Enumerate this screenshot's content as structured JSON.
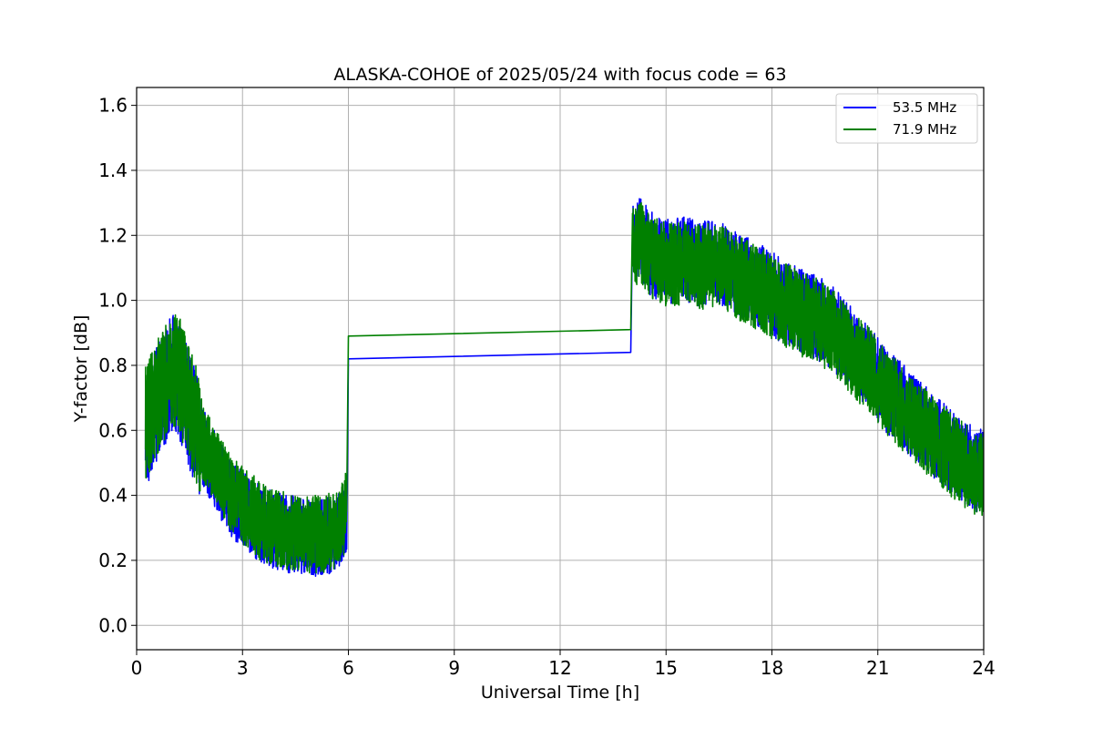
{
  "chart_data": {
    "type": "line",
    "title": "ALASKA-COHOE of 2025/05/24 with focus code = 63",
    "xlabel": "Universal Time [h]",
    "ylabel": "Y-factor [dB]",
    "xlim": [
      0,
      24
    ],
    "ylim": [
      -0.075,
      1.655
    ],
    "xticks": [
      0,
      3,
      6,
      9,
      12,
      15,
      18,
      21,
      24
    ],
    "xtick_labels": [
      "0",
      "3",
      "6",
      "9",
      "12",
      "15",
      "18",
      "21",
      "24"
    ],
    "yticks": [
      0.0,
      0.2,
      0.4,
      0.6,
      0.8,
      1.0,
      1.2,
      1.4,
      1.6
    ],
    "ytick_labels": [
      "0.0",
      "0.2",
      "0.4",
      "0.6",
      "0.8",
      "1.0",
      "1.2",
      "1.4",
      "1.6"
    ],
    "grid": true,
    "legend_position": "top-right",
    "series": [
      {
        "name": "53.5 MHz",
        "color": "#0000ff",
        "x": [
          0.25,
          0.5,
          0.75,
          1.0,
          1.25,
          1.5,
          1.75,
          2.0,
          2.25,
          2.5,
          2.75,
          3.0,
          3.25,
          3.5,
          3.75,
          4.0,
          4.25,
          4.5,
          4.75,
          5.0,
          5.25,
          5.5,
          5.75,
          5.95,
          6.0,
          14.0,
          14.05,
          14.25,
          14.5,
          14.75,
          15.0,
          15.25,
          15.5,
          15.75,
          16.0,
          16.25,
          16.5,
          16.75,
          17.0,
          17.25,
          17.5,
          17.75,
          18.0,
          18.25,
          18.5,
          18.75,
          19.0,
          19.25,
          19.5,
          19.75,
          20.0,
          20.25,
          20.5,
          20.75,
          21.0,
          21.25,
          21.5,
          21.75,
          22.0,
          22.25,
          22.5,
          22.75,
          23.0,
          23.25,
          23.5,
          23.75,
          24.0
        ],
        "y": [
          0.6,
          0.66,
          0.72,
          0.78,
          0.74,
          0.66,
          0.58,
          0.52,
          0.47,
          0.42,
          0.38,
          0.36,
          0.34,
          0.31,
          0.3,
          0.29,
          0.28,
          0.28,
          0.27,
          0.27,
          0.27,
          0.28,
          0.29,
          0.35,
          0.82,
          0.84,
          1.18,
          1.2,
          1.15,
          1.13,
          1.12,
          1.12,
          1.13,
          1.12,
          1.11,
          1.12,
          1.12,
          1.1,
          1.08,
          1.07,
          1.05,
          1.04,
          1.02,
          1.0,
          0.99,
          0.97,
          0.96,
          0.95,
          0.93,
          0.91,
          0.88,
          0.85,
          0.82,
          0.8,
          0.76,
          0.72,
          0.7,
          0.67,
          0.64,
          0.62,
          0.59,
          0.57,
          0.54,
          0.52,
          0.5,
          0.48,
          0.47
        ]
      },
      {
        "name": "71.9 MHz",
        "color": "#008000",
        "x": [
          0.25,
          0.5,
          0.75,
          1.0,
          1.25,
          1.5,
          1.75,
          2.0,
          2.25,
          2.5,
          2.75,
          3.0,
          3.25,
          3.5,
          3.75,
          4.0,
          4.25,
          4.5,
          4.75,
          5.0,
          5.25,
          5.5,
          5.75,
          5.95,
          6.0,
          14.0,
          14.05,
          14.25,
          14.5,
          14.75,
          15.0,
          15.25,
          15.5,
          15.75,
          16.0,
          16.25,
          16.5,
          16.75,
          17.0,
          17.25,
          17.5,
          17.75,
          18.0,
          18.25,
          18.5,
          18.75,
          19.0,
          19.25,
          19.5,
          19.75,
          20.0,
          20.25,
          20.5,
          20.75,
          21.0,
          21.25,
          21.5,
          21.75,
          22.0,
          22.25,
          22.5,
          22.75,
          23.0,
          23.25,
          23.5,
          23.75,
          24.0
        ],
        "y": [
          0.62,
          0.68,
          0.74,
          0.8,
          0.76,
          0.68,
          0.6,
          0.54,
          0.49,
          0.44,
          0.4,
          0.37,
          0.35,
          0.32,
          0.31,
          0.3,
          0.29,
          0.29,
          0.28,
          0.28,
          0.28,
          0.29,
          0.3,
          0.36,
          0.89,
          0.91,
          1.16,
          1.18,
          1.14,
          1.12,
          1.11,
          1.11,
          1.12,
          1.11,
          1.1,
          1.11,
          1.11,
          1.09,
          1.07,
          1.06,
          1.04,
          1.03,
          1.01,
          0.99,
          0.98,
          0.96,
          0.95,
          0.94,
          0.92,
          0.9,
          0.87,
          0.84,
          0.81,
          0.79,
          0.75,
          0.71,
          0.69,
          0.66,
          0.63,
          0.61,
          0.58,
          0.56,
          0.53,
          0.51,
          0.49,
          0.47,
          0.46
        ]
      }
    ]
  }
}
